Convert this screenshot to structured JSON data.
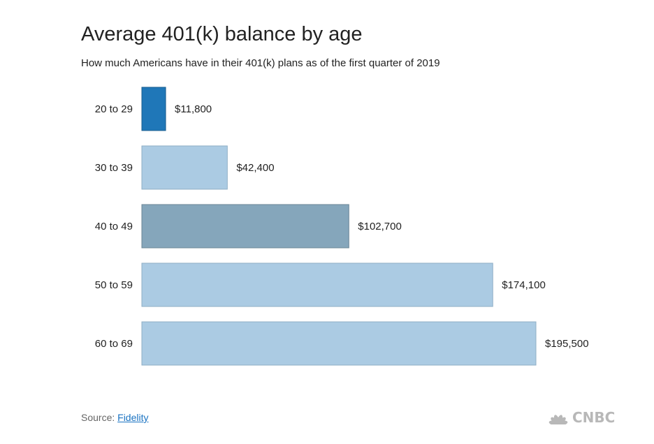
{
  "chart_data": {
    "type": "bar",
    "orientation": "horizontal",
    "title": "Average 401(k) balance by age",
    "subtitle": "How much Americans have in their 401(k) plans as of the first quarter of 2019",
    "categories": [
      "20 to 29",
      "30 to 39",
      "40 to 49",
      "50 to 59",
      "60 to 69"
    ],
    "values": [
      11800,
      42400,
      102700,
      174100,
      195500
    ],
    "value_labels": [
      "$11,800",
      "$42,400",
      "$102,700",
      "$174,100",
      "$195,500"
    ],
    "bar_colors": [
      "#1f77b8",
      "#abcbe3",
      "#85a6bb",
      "#abcbe3",
      "#abcbe3"
    ],
    "bar_stroke_colors": [
      "#185c8e",
      "#8fafc6",
      "#6a8596",
      "#8fafc6",
      "#8fafc6"
    ],
    "xlim": [
      0,
      195500
    ],
    "grid": false,
    "legend": "none"
  },
  "source": {
    "prefix": "Source: ",
    "link_text": "Fidelity"
  },
  "logo": {
    "text": "CNBC",
    "icon": "peacock-icon",
    "color": "#b8b8b8"
  }
}
